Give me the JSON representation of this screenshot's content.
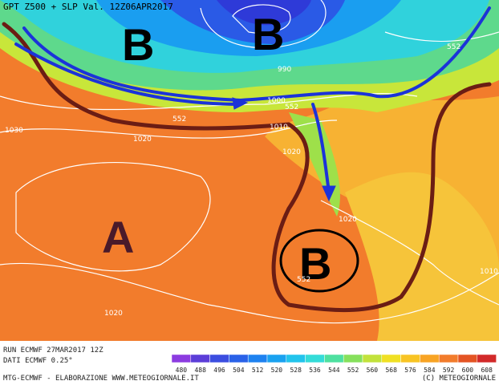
{
  "header": {
    "title": "GPT Z500 + SLP Val. 12Z06APR2017"
  },
  "map": {
    "pressure_centers": [
      "B",
      "B",
      "A",
      "B"
    ],
    "contour_labels": [
      "1030",
      "1020",
      "1010",
      "1000",
      "990",
      "552",
      "552",
      "552",
      "1020",
      "1020",
      "1020",
      "1010",
      "552"
    ]
  },
  "footer": {
    "run": "RUN ECMWF 27MAR2017 12Z",
    "data_source": "DATI ECMWF 0.25°",
    "credit": "MTG-ECMWF - ELABORAZIONE WWW.METEOGIORNALE.IT",
    "copyright": "(C) METEOGIORNALE"
  },
  "legend": {
    "values": [
      480,
      488,
      496,
      504,
      512,
      520,
      528,
      536,
      544,
      552,
      560,
      568,
      576,
      584,
      592,
      600,
      608
    ]
  }
}
